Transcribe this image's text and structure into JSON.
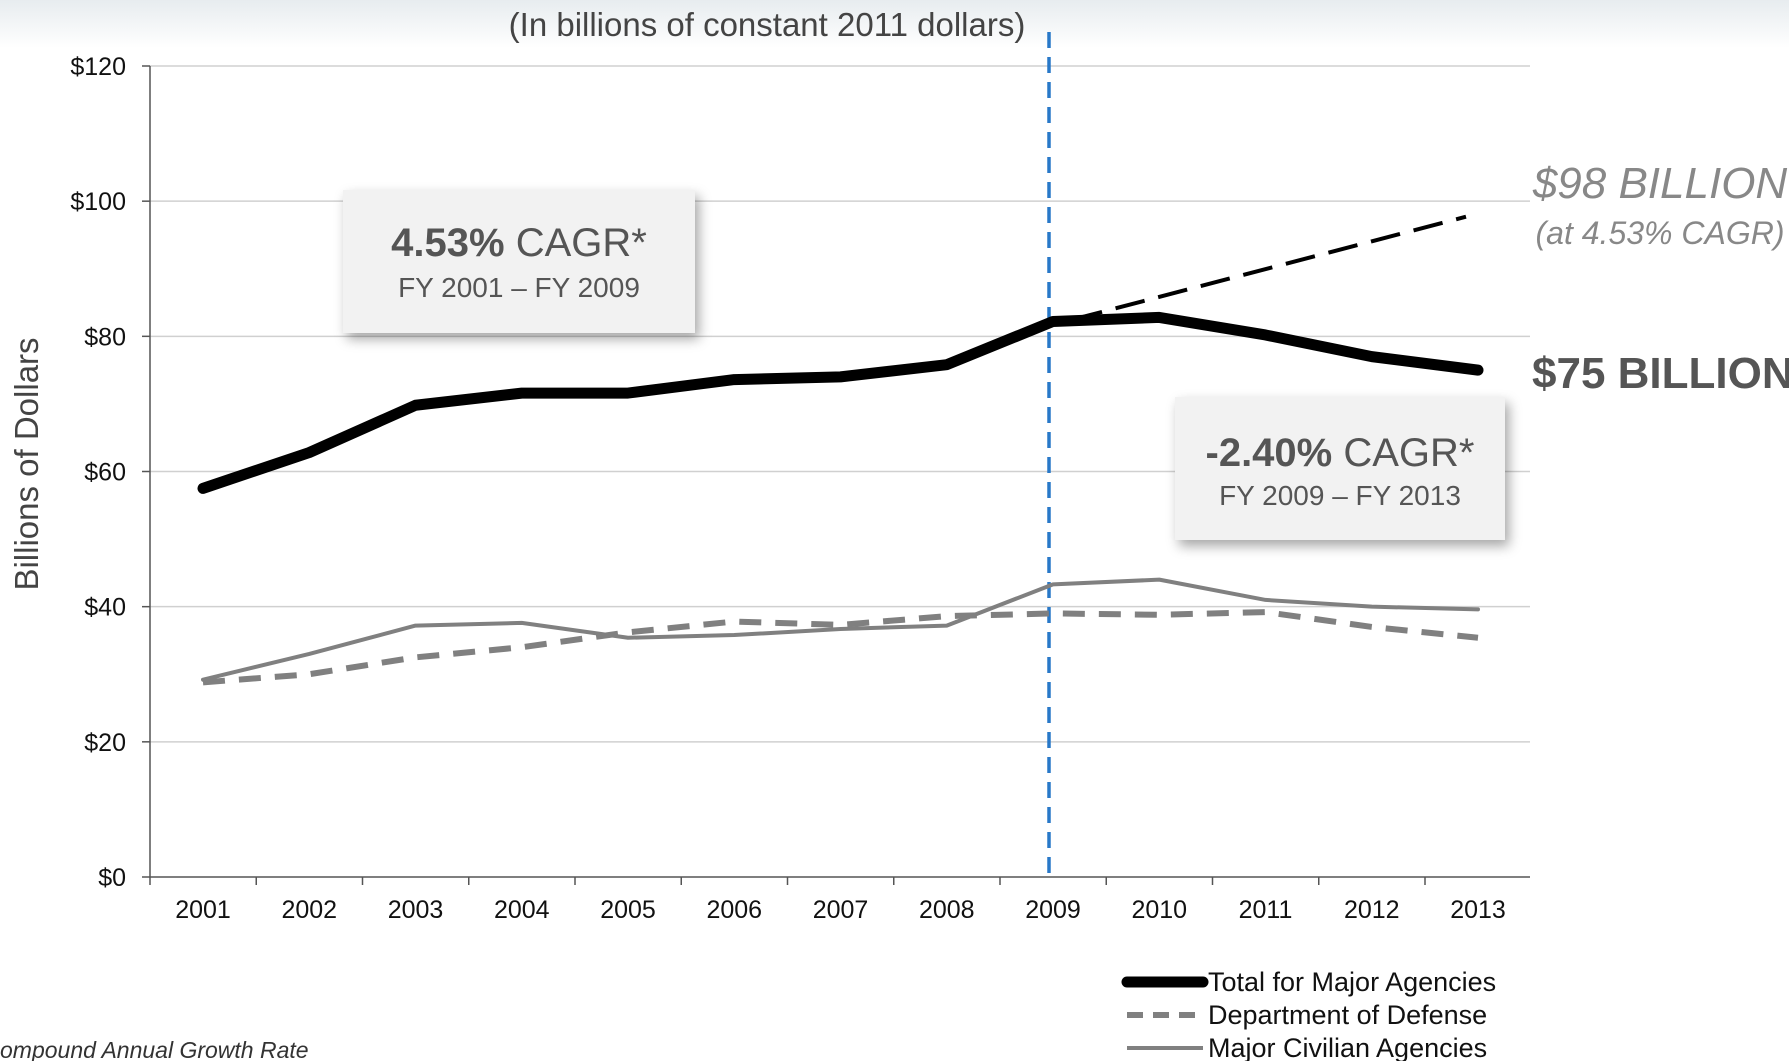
{
  "chart_data": {
    "type": "line",
    "subtitle": "(In billions of constant 2011 dollars)",
    "ylabel": "Billions of Dollars",
    "xlabel": "",
    "ylim": [
      0,
      120
    ],
    "yticks": [
      0,
      20,
      40,
      60,
      80,
      100,
      120
    ],
    "ytick_labels": [
      "$0",
      "$20",
      "$40",
      "$60",
      "$80",
      "$100",
      "$120"
    ],
    "categories": [
      "2001",
      "2002",
      "2003",
      "2004",
      "2005",
      "2006",
      "2007",
      "2008",
      "2009",
      "2010",
      "2011",
      "2012",
      "2013"
    ],
    "grid": true,
    "legend_position": "bottom-right",
    "colors": {
      "total": "#000000",
      "defense": "#808080",
      "civilian": "#808080",
      "projection": "#000000",
      "divider": "#2878c8"
    },
    "series": [
      {
        "name": "Total for Major Agencies",
        "key": "total",
        "style": "solid-thick",
        "values": [
          57.5,
          62.8,
          69.8,
          71.6,
          71.6,
          73.6,
          74.0,
          75.8,
          82.2,
          82.8,
          80.2,
          77.0,
          75.0
        ]
      },
      {
        "name": "Department of Defense",
        "key": "defense",
        "style": "dashed",
        "values": [
          28.8,
          30.0,
          32.5,
          34.0,
          36.2,
          37.8,
          37.3,
          38.6,
          39.0,
          38.8,
          39.2,
          37.0,
          35.4
        ]
      },
      {
        "name": "Major Civilian Agencies",
        "key": "civilian",
        "style": "solid-thin",
        "values": [
          29.2,
          33.0,
          37.2,
          37.6,
          35.4,
          35.8,
          36.7,
          37.2,
          43.3,
          44.0,
          41.0,
          40.0,
          39.6
        ]
      }
    ],
    "projection": {
      "x": [
        "2009",
        "2013"
      ],
      "values": [
        82.2,
        98.0
      ]
    },
    "divider_year": "2009",
    "annotations": {
      "box_left": {
        "value": "4.53%",
        "unit": " CAGR*",
        "range": "FY 2001 – FY 2009"
      },
      "box_right": {
        "value": "-2.40%",
        "unit": " CAGR*",
        "range": "FY 2009 – FY 2013"
      },
      "projection_value": "$98 BILLION",
      "projection_note": "(at 4.53% CAGR)",
      "end_value": "$75 BILLION"
    },
    "footnote": "ompound Annual Growth Rate"
  }
}
